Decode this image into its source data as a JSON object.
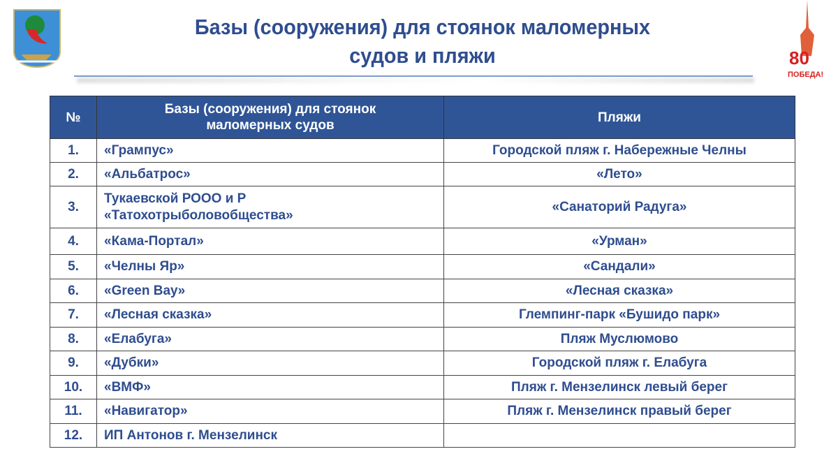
{
  "title": [
    "Базы (сооружения) для стоянок маломерных",
    "судов и пляжи"
  ],
  "logo_right_text": [
    "80",
    "ПОБЕДА!"
  ],
  "table": {
    "headers": [
      "№",
      "Базы (сооружения) для стоянок маломерных судов",
      "Пляжи"
    ],
    "rows": [
      {
        "n": "1.",
        "base": "«Грампус»",
        "beach": "Городской пляж г. Набережные Челны"
      },
      {
        "n": "2.",
        "base": "«Альбатрос»",
        "beach": "«Лето»"
      },
      {
        "n": "3.",
        "base": "Тукаевской РООО и Р «Татохотрыболовобщества»",
        "beach": "«Санаторий Радуга»"
      },
      {
        "n": "4.",
        "base": "«Кама-Портал»",
        "beach": "«Урман»"
      },
      {
        "n": "5.",
        "base": "«Челны Яр»",
        "beach": "«Сандали»"
      },
      {
        "n": "6.",
        "base": "«Green Bay»",
        "beach": "«Лесная сказка»"
      },
      {
        "n": "7.",
        "base": "«Лесная сказка»",
        "beach": "Глемпинг-парк «Бушидо парк»"
      },
      {
        "n": "8.",
        "base": "«Елабуга»",
        "beach": "Пляж Муслюмово"
      },
      {
        "n": "9.",
        "base": "«Дубки»",
        "beach": "Городской пляж г. Елабуга"
      },
      {
        "n": "10.",
        "base": "«ВМФ»",
        "beach": "Пляж г. Мензелинск левый берег"
      },
      {
        "n": "11.",
        "base": "«Навигатор»",
        "beach": "Пляж г. Мензелинск правый берег"
      },
      {
        "n": "12.",
        "base": "ИП Антонов г. Мензелинск",
        "beach": ""
      }
    ]
  }
}
